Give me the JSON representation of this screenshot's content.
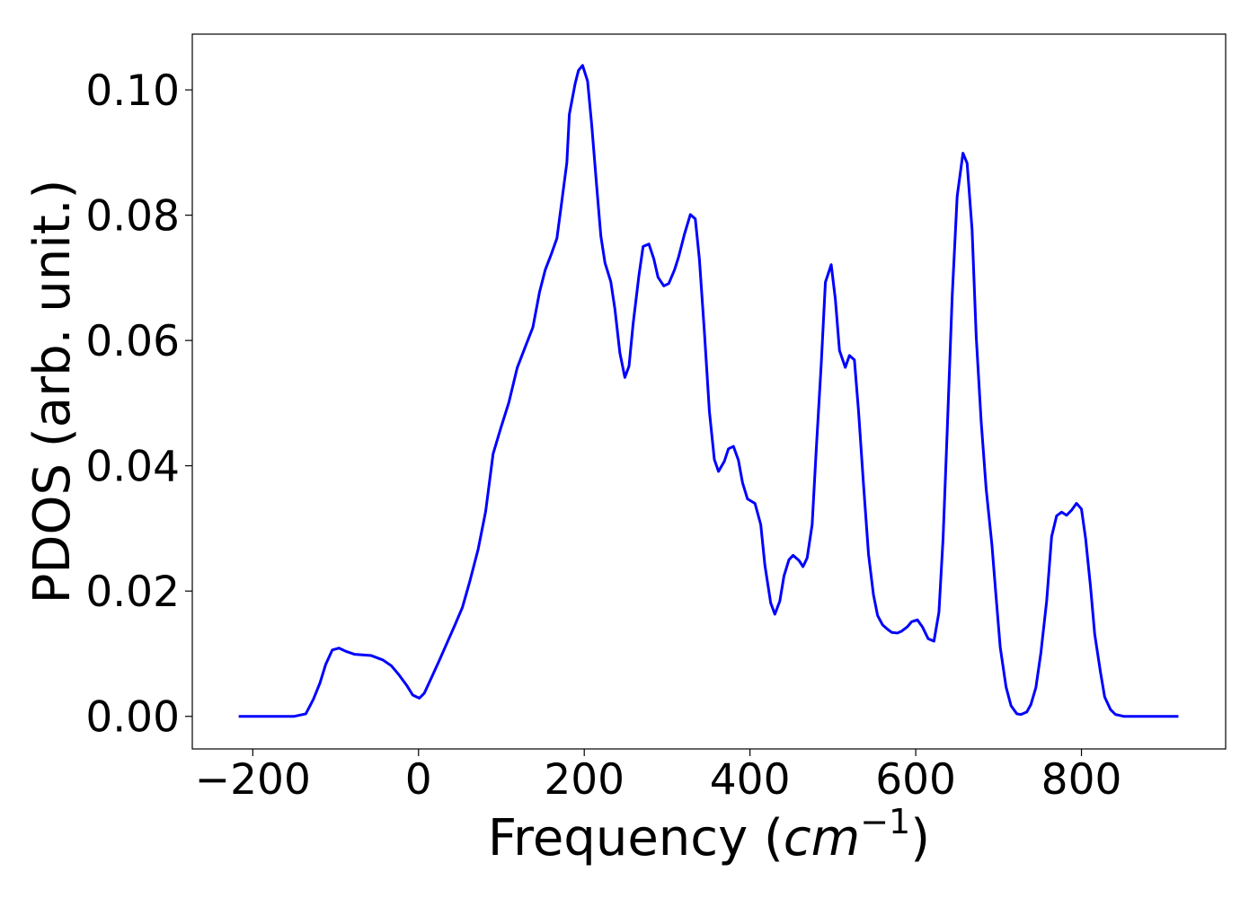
{
  "chart_data": {
    "type": "line",
    "xlabel": {
      "text": "Frequency (",
      "unit": "cm",
      "exponent": "−1",
      "close": ")"
    },
    "ylabel": "PDOS (arb. unit.)",
    "color": "#0000ff",
    "x": [
      -217,
      -150,
      -136,
      -127,
      -119,
      -112,
      -104,
      -96,
      -88,
      -77,
      -57,
      -43,
      -33,
      -24,
      -14,
      -7,
      1,
      7,
      15,
      25,
      35,
      44,
      53,
      62,
      72,
      81,
      90,
      99,
      109,
      119,
      128,
      138,
      146,
      153,
      160,
      167,
      172,
      179,
      182,
      189,
      193,
      198,
      204,
      209,
      215,
      220,
      225,
      232,
      237,
      243,
      249,
      254,
      259,
      266,
      271,
      278,
      284,
      289,
      296,
      302,
      309,
      314,
      321,
      328,
      334,
      339,
      345,
      351,
      357,
      362,
      369,
      374,
      380,
      386,
      391,
      397,
      406,
      413,
      418,
      425,
      430,
      436,
      441,
      447,
      452,
      459,
      464,
      469,
      475,
      480,
      486,
      491,
      498,
      503,
      508,
      515,
      520,
      526,
      531,
      537,
      543,
      549,
      554,
      560,
      566,
      571,
      578,
      583,
      590,
      595,
      602,
      608,
      615,
      622,
      628,
      633,
      638,
      644,
      650,
      657,
      662,
      668,
      673,
      679,
      685,
      692,
      697,
      702,
      709,
      715,
      722,
      727,
      734,
      739,
      745,
      751,
      758,
      764,
      770,
      776,
      782,
      788,
      794,
      800,
      805,
      811,
      816,
      823,
      828,
      835,
      841,
      851,
      917
    ],
    "values": [
      0,
      0,
      0.0004,
      0.0027,
      0.0053,
      0.0083,
      0.0106,
      0.0109,
      0.0104,
      0.0099,
      0.0097,
      0.009,
      0.0081,
      0.0067,
      0.0049,
      0.0034,
      0.0029,
      0.0037,
      0.006,
      0.0089,
      0.0119,
      0.0146,
      0.0174,
      0.0216,
      0.0267,
      0.0327,
      0.0419,
      0.0459,
      0.0501,
      0.0556,
      0.0587,
      0.0621,
      0.0677,
      0.0713,
      0.0737,
      0.0763,
      0.0813,
      0.0884,
      0.0961,
      0.101,
      0.1031,
      0.1039,
      0.1014,
      0.0944,
      0.0846,
      0.0767,
      0.0724,
      0.0694,
      0.065,
      0.058,
      0.0541,
      0.0559,
      0.0627,
      0.0704,
      0.075,
      0.0754,
      0.073,
      0.0701,
      0.0687,
      0.0691,
      0.0713,
      0.0734,
      0.077,
      0.0801,
      0.0794,
      0.0729,
      0.0613,
      0.0487,
      0.041,
      0.0391,
      0.0407,
      0.0427,
      0.0431,
      0.0409,
      0.0373,
      0.0347,
      0.034,
      0.0306,
      0.0241,
      0.0181,
      0.0163,
      0.0184,
      0.0224,
      0.025,
      0.0257,
      0.0249,
      0.0239,
      0.0253,
      0.0306,
      0.0427,
      0.0563,
      0.0693,
      0.0721,
      0.0666,
      0.0584,
      0.0557,
      0.0576,
      0.0569,
      0.0487,
      0.037,
      0.0259,
      0.0194,
      0.0161,
      0.0146,
      0.0139,
      0.0134,
      0.0133,
      0.0136,
      0.0143,
      0.0151,
      0.0154,
      0.0143,
      0.0124,
      0.012,
      0.0166,
      0.0284,
      0.0456,
      0.067,
      0.083,
      0.0899,
      0.0883,
      0.0777,
      0.0606,
      0.047,
      0.0363,
      0.0273,
      0.019,
      0.011,
      0.0047,
      0.0017,
      0.0004,
      0.0003,
      0.0007,
      0.0019,
      0.0046,
      0.0101,
      0.0184,
      0.0287,
      0.032,
      0.0326,
      0.0321,
      0.0329,
      0.034,
      0.0331,
      0.0284,
      0.0206,
      0.0131,
      0.007,
      0.0031,
      0.0011,
      0.0003,
      0,
      0
    ],
    "xlim": [
      -273,
      974
    ],
    "ylim": [
      -0.0052,
      0.1089
    ],
    "xticks": [
      {
        "value": -200,
        "label": "−200"
      },
      0,
      200,
      400,
      600,
      800
    ],
    "yticks": [
      {
        "value": 0,
        "label": "0.00"
      },
      {
        "value": 0.02,
        "label": "0.02"
      },
      {
        "value": 0.04,
        "label": "0.04"
      },
      {
        "value": 0.06,
        "label": "0.06"
      },
      {
        "value": 0.08,
        "label": "0.08"
      },
      {
        "value": 0.1,
        "label": "0.10"
      }
    ]
  }
}
